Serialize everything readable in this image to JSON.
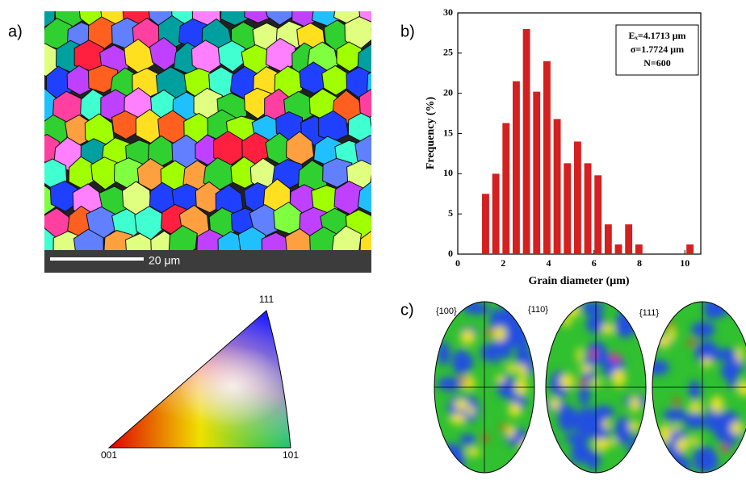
{
  "panels": {
    "a": "a)",
    "b": "b)",
    "c": "c)"
  },
  "scale_bar": "20 μm",
  "ipf_labels": {
    "001": "001",
    "101": "101",
    "111": "111"
  },
  "pole_figures": [
    "{100}",
    "{110}",
    "{111}"
  ],
  "chart_data": {
    "type": "histogram",
    "x_label": "Grain diameter (μm)",
    "y_label": "Frequency (%)",
    "annotations": [
      "Eₓ=4.1713 μm",
      "σ=1.7724 μm",
      "N=600"
    ],
    "bins": [
      1,
      1.45,
      1.9,
      2.35,
      2.8,
      3.25,
      3.7,
      4.15,
      4.6,
      5.05,
      5.5,
      5.95,
      6.4,
      6.85,
      7.3,
      7.75,
      8.2,
      8.65,
      9.1,
      9.55,
      10,
      10.45
    ],
    "counts": [
      7.5,
      10,
      16.3,
      21.5,
      28,
      20.2,
      24,
      16.8,
      11.3,
      14,
      11.3,
      9.8,
      3.7,
      1.2,
      3.7,
      1.2,
      0,
      0,
      0,
      0,
      1.2
    ],
    "color": "#d42020",
    "xlim": [
      0,
      10.7
    ],
    "ylim": [
      0,
      30
    ],
    "xticks": [
      0,
      2,
      4,
      6,
      8,
      10
    ],
    "yticks": [
      0,
      5,
      10,
      15,
      20,
      25,
      30
    ]
  }
}
